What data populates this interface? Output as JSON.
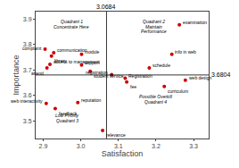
{
  "chart_data": {
    "type": "scatter",
    "xlabel": "Satisfaction",
    "ylabel": "Importance",
    "xlim": [
      2.88,
      3.34
    ],
    "ylim": [
      3.43,
      3.93
    ],
    "xticks": [
      2.9,
      {
        "value": 3,
        "label": "3.0"
      },
      3.1,
      3.2,
      3.3
    ],
    "yticks": [
      3.5,
      3.6,
      3.7,
      3.8,
      3.9
    ],
    "grid": false,
    "color": "#cc0000",
    "x": [
      2.905,
      2.928,
      2.922,
      2.918,
      2.91,
      3.002,
      3.002,
      3.025,
      3.082,
      3.118,
      3.122,
      3.182,
      3.222,
      3.262,
      3.242,
      3.278,
      2.908,
      2.932,
      2.992,
      3.058
    ],
    "values": [
      3.782,
      3.768,
      3.755,
      3.722,
      3.708,
      3.762,
      3.72,
      3.695,
      3.682,
      3.668,
      3.653,
      3.708,
      3.635,
      3.878,
      3.762,
      3.66,
      3.568,
      3.548,
      3.572,
      3.462
    ],
    "point_labels": [
      "complaint",
      "communication",
      "library",
      "access to management",
      "attend",
      "module",
      "support",
      "student service",
      "registration",
      "Registration",
      "fee",
      "schedule",
      "curriculum",
      "examination",
      "info in web",
      "web design",
      "web interactivity",
      "feedback",
      "reputation",
      "relevance"
    ],
    "vline": {
      "value": 3.0684,
      "label": "3.0684"
    },
    "hline": {
      "value": 3.6804,
      "label": "3.6804"
    },
    "annotations": [
      {
        "text": "Quadrant 1",
        "x": 2.975,
        "y": 3.905
      },
      {
        "text": "Concentrate Here",
        "x": 2.975,
        "y": 3.885
      },
      {
        "text": "Quadrant 2",
        "x": 3.195,
        "y": 3.905
      },
      {
        "text": "Maintain",
        "x": 3.195,
        "y": 3.885
      },
      {
        "text": "Performance",
        "x": 3.195,
        "y": 3.866
      },
      {
        "text": "Low Priority",
        "x": 2.965,
        "y": 3.535
      },
      {
        "text": "Quadrant 3",
        "x": 2.965,
        "y": 3.516
      },
      {
        "text": "Possible Overkill",
        "x": 3.2,
        "y": 3.608
      },
      {
        "text": "Quadrant 4",
        "x": 3.2,
        "y": 3.589
      }
    ]
  }
}
